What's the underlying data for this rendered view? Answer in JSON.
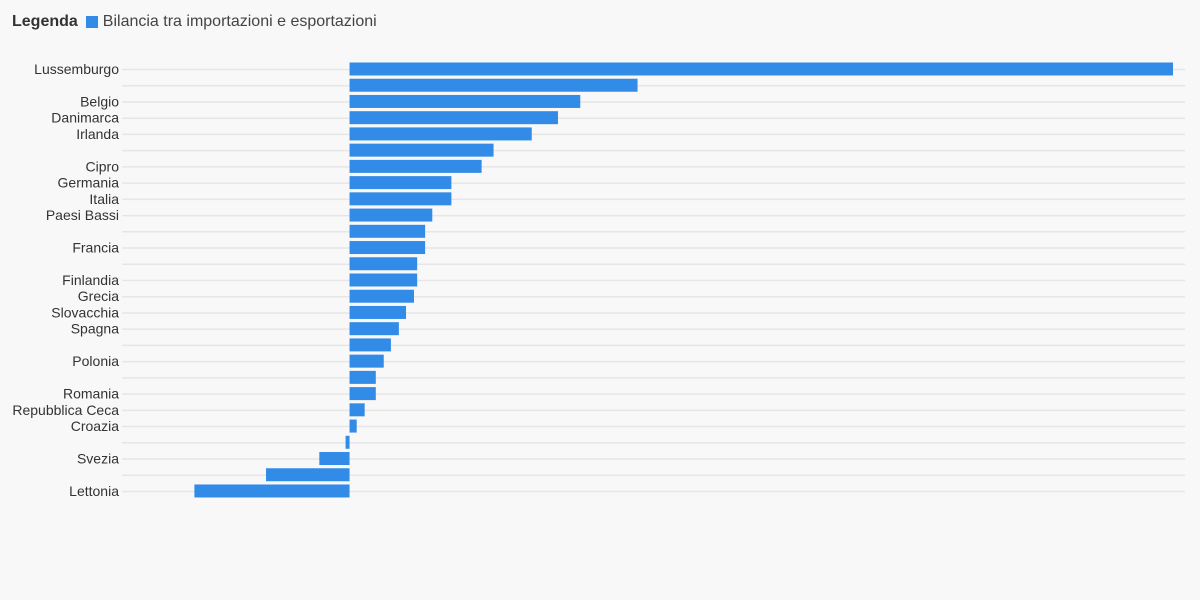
{
  "legend": {
    "title": "Legenda",
    "series_label": "Bilancia tra importazioni e esportazioni",
    "color": "#338be8"
  },
  "chart_data": {
    "type": "bar",
    "orientation": "horizontal",
    "series": [
      {
        "name": "Bilancia tra importazioni e esportazioni",
        "color": "#338be8",
        "values": [
          103.5,
          36.2,
          29.0,
          26.2,
          22.9,
          18.1,
          16.6,
          12.8,
          12.8,
          10.4,
          9.5,
          9.5,
          8.5,
          8.5,
          8.1,
          7.1,
          6.2,
          5.2,
          4.3,
          3.3,
          3.3,
          1.9,
          0.9,
          -0.5,
          -3.8,
          -10.5,
          -19.5
        ]
      }
    ],
    "categories": [
      "Lussemburgo",
      "",
      "Belgio",
      "Danimarca",
      "Irlanda",
      "",
      "Cipro",
      "Germania",
      "Italia",
      "Paesi Bassi",
      "",
      "Francia",
      "",
      "Finlandia",
      "Grecia",
      "Slovacchia",
      "Spagna",
      "",
      "Polonia",
      "",
      "Romania",
      "Repubblica Ceca",
      "Croazia",
      "",
      "Svezia",
      "",
      "Lettonia"
    ],
    "xlim": [
      -28.6,
      103.5
    ],
    "grid": true,
    "legend_position": "top-left"
  }
}
